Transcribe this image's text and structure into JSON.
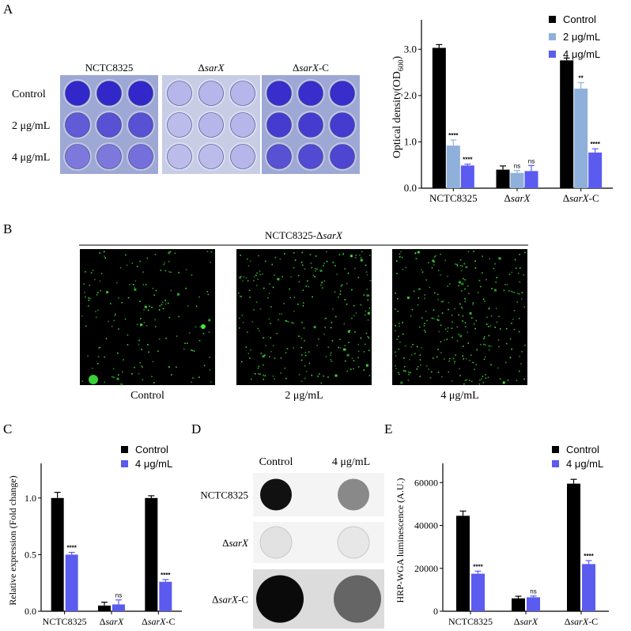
{
  "panels": {
    "A": "A",
    "B": "B",
    "C": "C",
    "D": "D",
    "E": "E"
  },
  "colors": {
    "control": "#000000",
    "low": "#8fb0da",
    "high": "#5b5bf0",
    "plate_bg": "#9ea8d4",
    "microscopy_bg": "#000000",
    "microscopy_dots": "#3ee83e"
  },
  "panelA": {
    "plate_columns": [
      "NCTC8325",
      "ΔsarX",
      "ΔsarX-C"
    ],
    "plate_rows": [
      "Control",
      "2 μg/mL",
      "4 μg/mL"
    ],
    "plate_intensity": [
      [
        0.95,
        0.95,
        0.95,
        0.25,
        0.25,
        0.25,
        0.92,
        0.92,
        0.92
      ],
      [
        0.7,
        0.75,
        0.75,
        0.22,
        0.25,
        0.25,
        0.85,
        0.85,
        0.85
      ],
      [
        0.55,
        0.55,
        0.6,
        0.22,
        0.22,
        0.25,
        0.75,
        0.78,
        0.8
      ]
    ]
  },
  "panelB": {
    "title_plain": "NCTC8325-Δ",
    "title_italic": "sarX",
    "labels": [
      "Control",
      "2 μg/mL",
      "4 μg/mL"
    ]
  },
  "panelD": {
    "col_headers": [
      "Control",
      "4 μg/mL"
    ],
    "row_labels": [
      "NCTC8325",
      "ΔsarX",
      "ΔsarX-C"
    ],
    "spot_intensity": [
      [
        0.95,
        0.45
      ],
      [
        0.08,
        0.06
      ],
      [
        0.98,
        0.6
      ]
    ]
  },
  "chart_data": [
    {
      "id": "A",
      "type": "bar",
      "categories": [
        "NCTC8325",
        "ΔsarX",
        "ΔsarX-C"
      ],
      "series": [
        {
          "name": "Control",
          "values": [
            3.03,
            0.4,
            2.76
          ],
          "errors": [
            0.07,
            0.08,
            0.05
          ],
          "sig": [
            "",
            "",
            ""
          ]
        },
        {
          "name": "2 μg/mL",
          "values": [
            0.92,
            0.33,
            2.15
          ],
          "errors": [
            0.12,
            0.05,
            0.13
          ],
          "sig": [
            "****",
            "ns",
            "**"
          ]
        },
        {
          "name": "4 μg/mL",
          "values": [
            0.49,
            0.37,
            0.77
          ],
          "errors": [
            0.03,
            0.12,
            0.08
          ],
          "sig": [
            "****",
            "ns",
            "****"
          ]
        }
      ],
      "ylabel": "Optical density(OD600)",
      "ylim": [
        0,
        3.5
      ],
      "yticks": [
        "0.0",
        "1.0",
        "2.0",
        "3.0"
      ],
      "ytick_values": [
        0,
        1,
        2,
        3
      ],
      "legend": "top-right"
    },
    {
      "id": "C",
      "type": "bar",
      "categories": [
        "NCTC8325",
        "ΔsarX",
        "ΔsarX-C"
      ],
      "series": [
        {
          "name": "Control",
          "values": [
            1.0,
            0.05,
            1.0
          ],
          "errors": [
            0.05,
            0.03,
            0.02
          ],
          "sig": [
            "",
            "",
            ""
          ]
        },
        {
          "name": "4 μg/mL",
          "values": [
            0.5,
            0.06,
            0.26
          ],
          "errors": [
            0.02,
            0.04,
            0.02
          ],
          "sig": [
            "****",
            "ns",
            "****"
          ]
        }
      ],
      "ylabel": "Relative expression (Fold change)",
      "ylim": [
        0,
        1.25
      ],
      "yticks": [
        "0.0",
        "0.5",
        "1.0"
      ],
      "ytick_values": [
        0,
        0.5,
        1.0
      ],
      "legend": "top-right"
    },
    {
      "id": "E",
      "type": "bar",
      "categories": [
        "NCTC8325",
        "ΔsarX",
        "ΔsarX-C"
      ],
      "series": [
        {
          "name": "Control",
          "values": [
            44500,
            6000,
            59500
          ],
          "errors": [
            2200,
            1000,
            2000
          ],
          "sig": [
            "",
            "",
            ""
          ]
        },
        {
          "name": "4 μg/mL",
          "values": [
            17500,
            6500,
            22000
          ],
          "errors": [
            1200,
            600,
            1600
          ],
          "sig": [
            "****",
            "ns",
            "****"
          ]
        }
      ],
      "ylabel": "HRP-WGA luminescence (A.U.)",
      "ylim": [
        0,
        66000
      ],
      "yticks": [
        "0",
        "20000",
        "40000",
        "60000"
      ],
      "ytick_values": [
        0,
        20000,
        40000,
        60000
      ],
      "legend": "top-right"
    }
  ]
}
